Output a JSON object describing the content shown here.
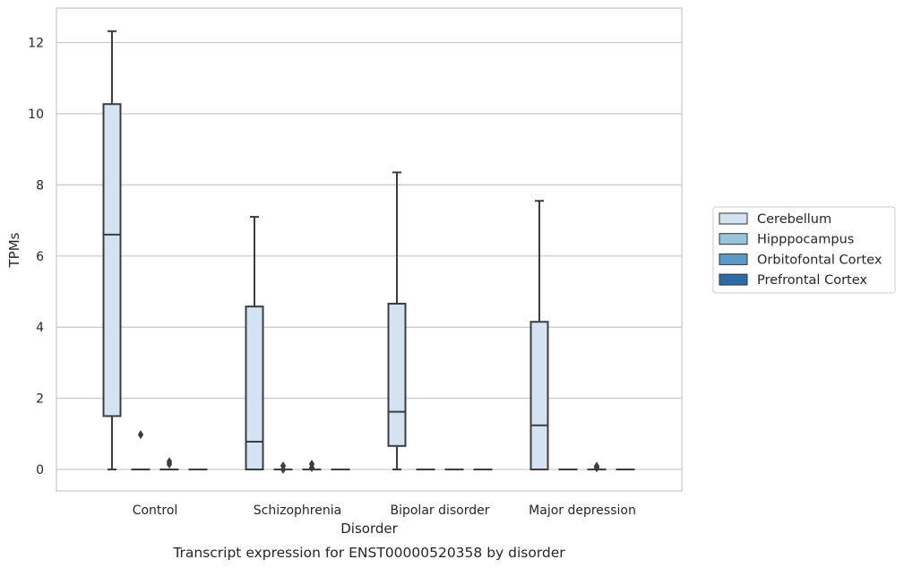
{
  "chart_data": {
    "type": "box",
    "title": "",
    "caption": "Transcript expression for ENST00000520358 by disorder",
    "xlabel": "Disorder",
    "ylabel": "TPMs",
    "ylim": [
      -0.6,
      12.9
    ],
    "yticks": [
      0,
      2,
      4,
      6,
      8,
      10,
      12
    ],
    "grid": "horizontal",
    "legend_position": "right",
    "categories": [
      "Control",
      "Schizophrenia",
      "Bipolar disorder",
      "Major depression"
    ],
    "series": [
      {
        "name": "Cerebellum",
        "color": "#d3e3f2",
        "boxes": [
          {
            "whisker_low": 0,
            "q1": 1.5,
            "median": 6.6,
            "q3": 10.27,
            "whisker_high": 12.32,
            "outliers": []
          },
          {
            "whisker_low": 0,
            "q1": 0,
            "median": 0.78,
            "q3": 4.58,
            "whisker_high": 7.1,
            "outliers": []
          },
          {
            "whisker_low": 0,
            "q1": 0.66,
            "median": 1.62,
            "q3": 4.66,
            "whisker_high": 8.35,
            "outliers": []
          },
          {
            "whisker_low": 0,
            "q1": 0,
            "median": 1.24,
            "q3": 4.15,
            "whisker_high": 7.55,
            "outliers": []
          }
        ]
      },
      {
        "name": "Hipppocampus",
        "color": "#9ac3de",
        "boxes": [
          {
            "whisker_low": 0,
            "q1": 0,
            "median": 0,
            "q3": 0,
            "whisker_high": 0,
            "outliers": [
              0.98
            ]
          },
          {
            "whisker_low": 0,
            "q1": 0,
            "median": 0,
            "q3": 0,
            "whisker_high": 0,
            "outliers": [
              0.0,
              0.1
            ]
          },
          {
            "whisker_low": 0,
            "q1": 0,
            "median": 0,
            "q3": 0,
            "whisker_high": 0,
            "outliers": []
          },
          {
            "whisker_low": 0,
            "q1": 0,
            "median": 0,
            "q3": 0,
            "whisker_high": 0,
            "outliers": []
          }
        ]
      },
      {
        "name": "Orbitofontal Cortex",
        "color": "#5b9ac8",
        "boxes": [
          {
            "whisker_low": 0,
            "q1": 0,
            "median": 0,
            "q3": 0,
            "whisker_high": 0,
            "outliers": [
              0.15,
              0.22
            ]
          },
          {
            "whisker_low": 0,
            "q1": 0,
            "median": 0,
            "q3": 0,
            "whisker_high": 0,
            "outliers": [
              0.05,
              0.15
            ]
          },
          {
            "whisker_low": 0,
            "q1": 0,
            "median": 0,
            "q3": 0,
            "whisker_high": 0,
            "outliers": []
          },
          {
            "whisker_low": 0,
            "q1": 0,
            "median": 0,
            "q3": 0,
            "whisker_high": 0,
            "outliers": [
              0.04,
              0.09
            ]
          }
        ]
      },
      {
        "name": "Prefrontal Cortex",
        "color": "#2c6aa8",
        "boxes": [
          {
            "whisker_low": 0,
            "q1": 0,
            "median": 0,
            "q3": 0,
            "whisker_high": 0,
            "outliers": []
          },
          {
            "whisker_low": 0,
            "q1": 0,
            "median": 0,
            "q3": 0,
            "whisker_high": 0,
            "outliers": []
          },
          {
            "whisker_low": 0,
            "q1": 0,
            "median": 0,
            "q3": 0,
            "whisker_high": 0,
            "outliers": []
          },
          {
            "whisker_low": 0,
            "q1": 0,
            "median": 0,
            "q3": 0,
            "whisker_high": 0,
            "outliers": []
          }
        ]
      }
    ]
  }
}
